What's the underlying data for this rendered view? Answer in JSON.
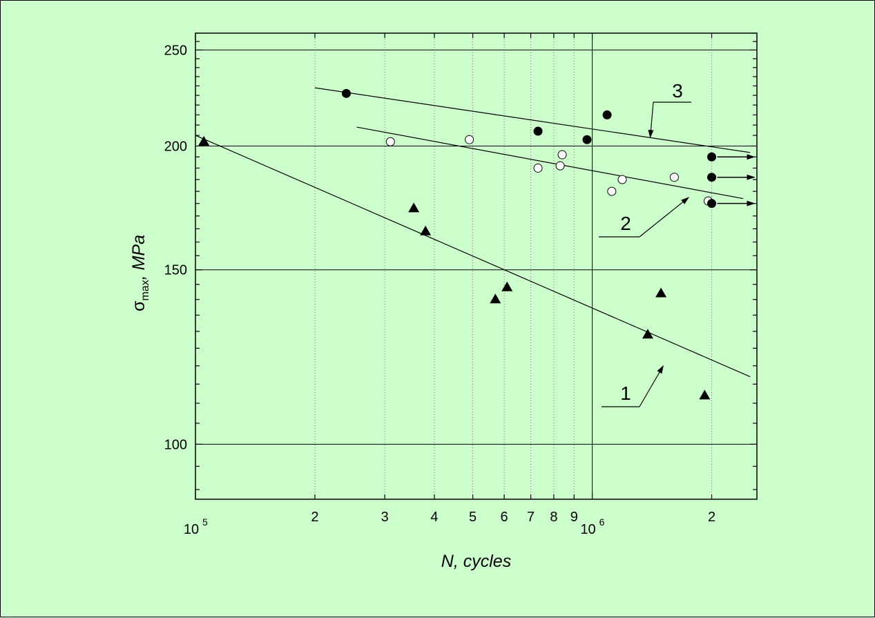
{
  "chart_data": {
    "type": "scatter",
    "title": "",
    "xlabel": "N, cycles",
    "ylabel_main": "σ",
    "ylabel_sub": "max",
    "ylabel_unit": ", MPa",
    "x_scale": "log",
    "y_scale": "log",
    "xlim": [
      100000,
      2600000
    ],
    "ylim": [
      88,
      260
    ],
    "x_ticks": [
      {
        "value": 100000,
        "label": "10",
        "sup": "5"
      },
      {
        "value": 200000,
        "label": "2"
      },
      {
        "value": 300000,
        "label": "3"
      },
      {
        "value": 400000,
        "label": "4"
      },
      {
        "value": 500000,
        "label": "5"
      },
      {
        "value": 600000,
        "label": "6"
      },
      {
        "value": 700000,
        "label": "7"
      },
      {
        "value": 800000,
        "label": "8"
      },
      {
        "value": 900000,
        "label": "9"
      },
      {
        "value": 1000000,
        "label": "10",
        "sup": "6"
      },
      {
        "value": 2000000,
        "label": "2"
      }
    ],
    "y_ticks": [
      {
        "value": 100,
        "label": "100"
      },
      {
        "value": 150,
        "label": "150"
      },
      {
        "value": 200,
        "label": "200"
      },
      {
        "value": 250,
        "label": "250"
      }
    ],
    "grid": true,
    "series": [
      {
        "label": "1",
        "marker": "filled-triangle",
        "points": [
          [
            105000,
            202
          ],
          [
            355000,
            173
          ],
          [
            380000,
            164
          ],
          [
            570000,
            140
          ],
          [
            610000,
            144
          ],
          [
            1380000,
            129
          ],
          [
            1490000,
            142
          ],
          [
            1920000,
            112
          ]
        ],
        "fit_line": [
          [
            100000,
            205
          ],
          [
            2500000,
            117
          ]
        ]
      },
      {
        "label": "2",
        "marker": "open-circle",
        "points": [
          [
            310000,
            202
          ],
          [
            490000,
            203
          ],
          [
            730000,
            190
          ],
          [
            840000,
            196
          ],
          [
            830000,
            191
          ],
          [
            1120000,
            180
          ],
          [
            1190000,
            185
          ],
          [
            1610000,
            186
          ],
          [
            1960000,
            176
          ]
        ],
        "fit_line": [
          [
            255000,
            209
          ],
          [
            2400000,
            177
          ]
        ]
      },
      {
        "label": "3",
        "marker": "filled-circle",
        "points": [
          [
            240000,
            226
          ],
          [
            730000,
            207
          ],
          [
            970000,
            203
          ],
          [
            1090000,
            215
          ],
          [
            2000000,
            195
          ],
          [
            2000000,
            186
          ],
          [
            2000000,
            175
          ]
        ],
        "runouts": [
          [
            2000000,
            195
          ],
          [
            2000000,
            186
          ],
          [
            2000000,
            175
          ]
        ],
        "fit_line": [
          [
            200000,
            229
          ],
          [
            2500000,
            197
          ]
        ]
      }
    ]
  }
}
